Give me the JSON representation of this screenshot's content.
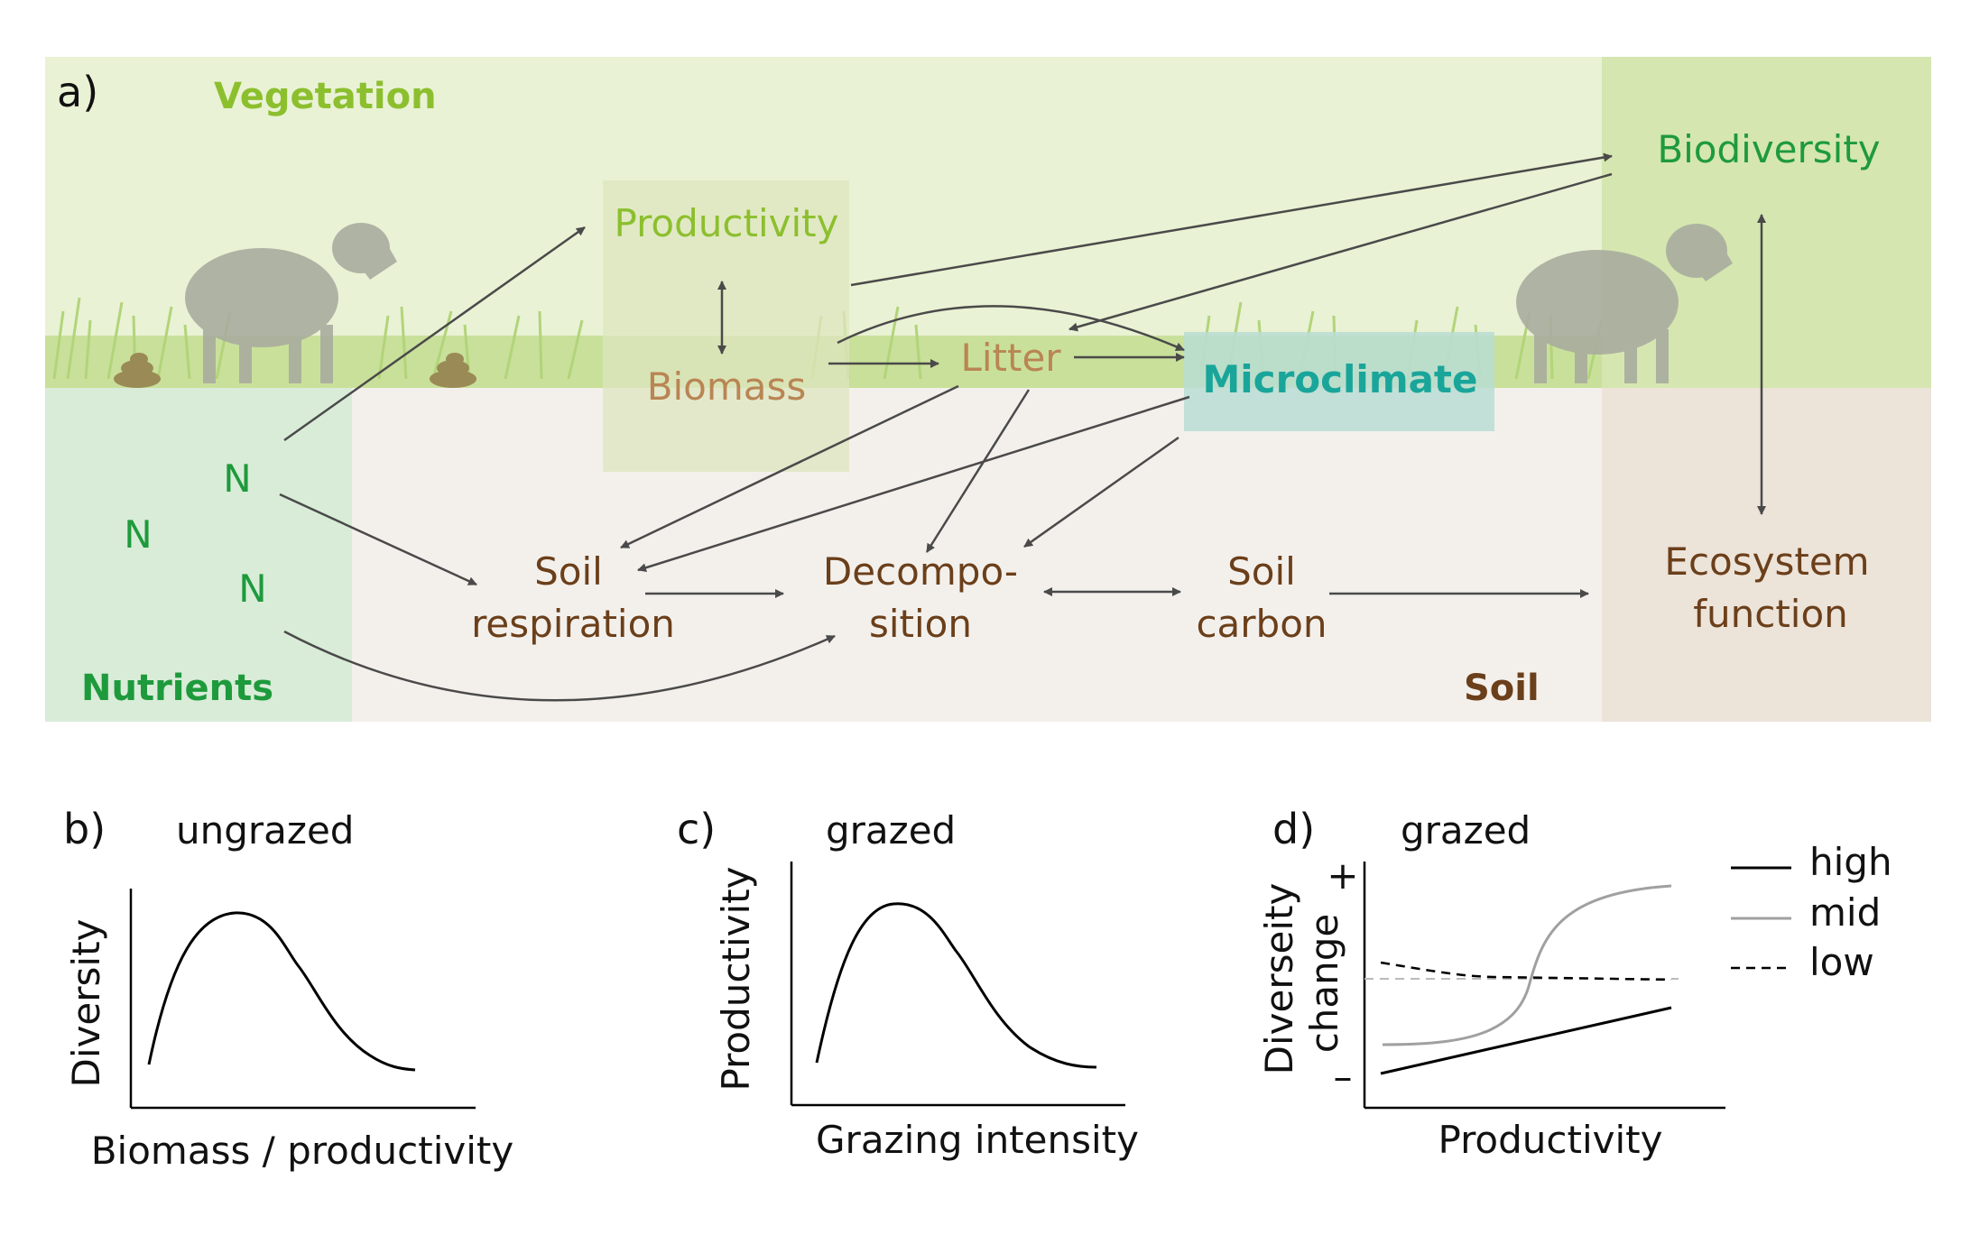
{
  "panel_a": {
    "label": "a)",
    "zones": {
      "vegetation": "Vegetation",
      "nutrients": "Nutrients",
      "soil": "Soil"
    },
    "nodes": {
      "productivity": "Productivity",
      "biomass": "Biomass",
      "litter": "Litter",
      "microclimate": "Microclimate",
      "biodiversity": "Biodiversity",
      "n1": "N",
      "n2": "N",
      "n3": "N",
      "soil_respiration_1": "Soil",
      "soil_respiration_2": "respiration",
      "decomposition_1": "Decompo-",
      "decomposition_2": "sition",
      "soil_carbon_1": "Soil",
      "soil_carbon_2": "carbon",
      "ecosystem_function_1": "Ecosystem",
      "ecosystem_function_2": "function"
    },
    "colors": {
      "vegetation_bg": "#e9f2d4",
      "grass": "#b5d67a",
      "soil_bg": "#f3f0ec",
      "nutrients_bg": "#d9ecd8",
      "right_column_top": "#d6e6b0",
      "right_column_bottom": "#ece3d9",
      "productivity_box": "#dde5bf",
      "microclimate_box": "#b9ddd3",
      "vegetation_text": "#8cbf2e",
      "green_text": "#1e9a3c",
      "brown_text": "#6b3f1a",
      "light_brown_text": "#b98553",
      "teal_text": "#1aa59a",
      "arrow": "#4a4a4a",
      "sheep": "#a9ad9f"
    }
  },
  "panel_b": {
    "label": "b)",
    "title": "ungrazed",
    "ylabel": "Diversity",
    "xlabel": "Biomass / productivity"
  },
  "panel_c": {
    "label": "c)",
    "title": "grazed",
    "ylabel": "Productivity",
    "xlabel": "Grazing intensity"
  },
  "panel_d": {
    "label": "d)",
    "title": "grazed",
    "ylabel_1": "Diverseity",
    "ylabel_2": "change",
    "plus": "+",
    "minus": "–",
    "xlabel": "Productivity",
    "legend": [
      {
        "name": "high",
        "style": "solid",
        "color": "#000000"
      },
      {
        "name": "mid",
        "style": "solid",
        "color": "#a0a0a0"
      },
      {
        "name": "low",
        "style": "dashed",
        "color": "#000000"
      }
    ]
  }
}
